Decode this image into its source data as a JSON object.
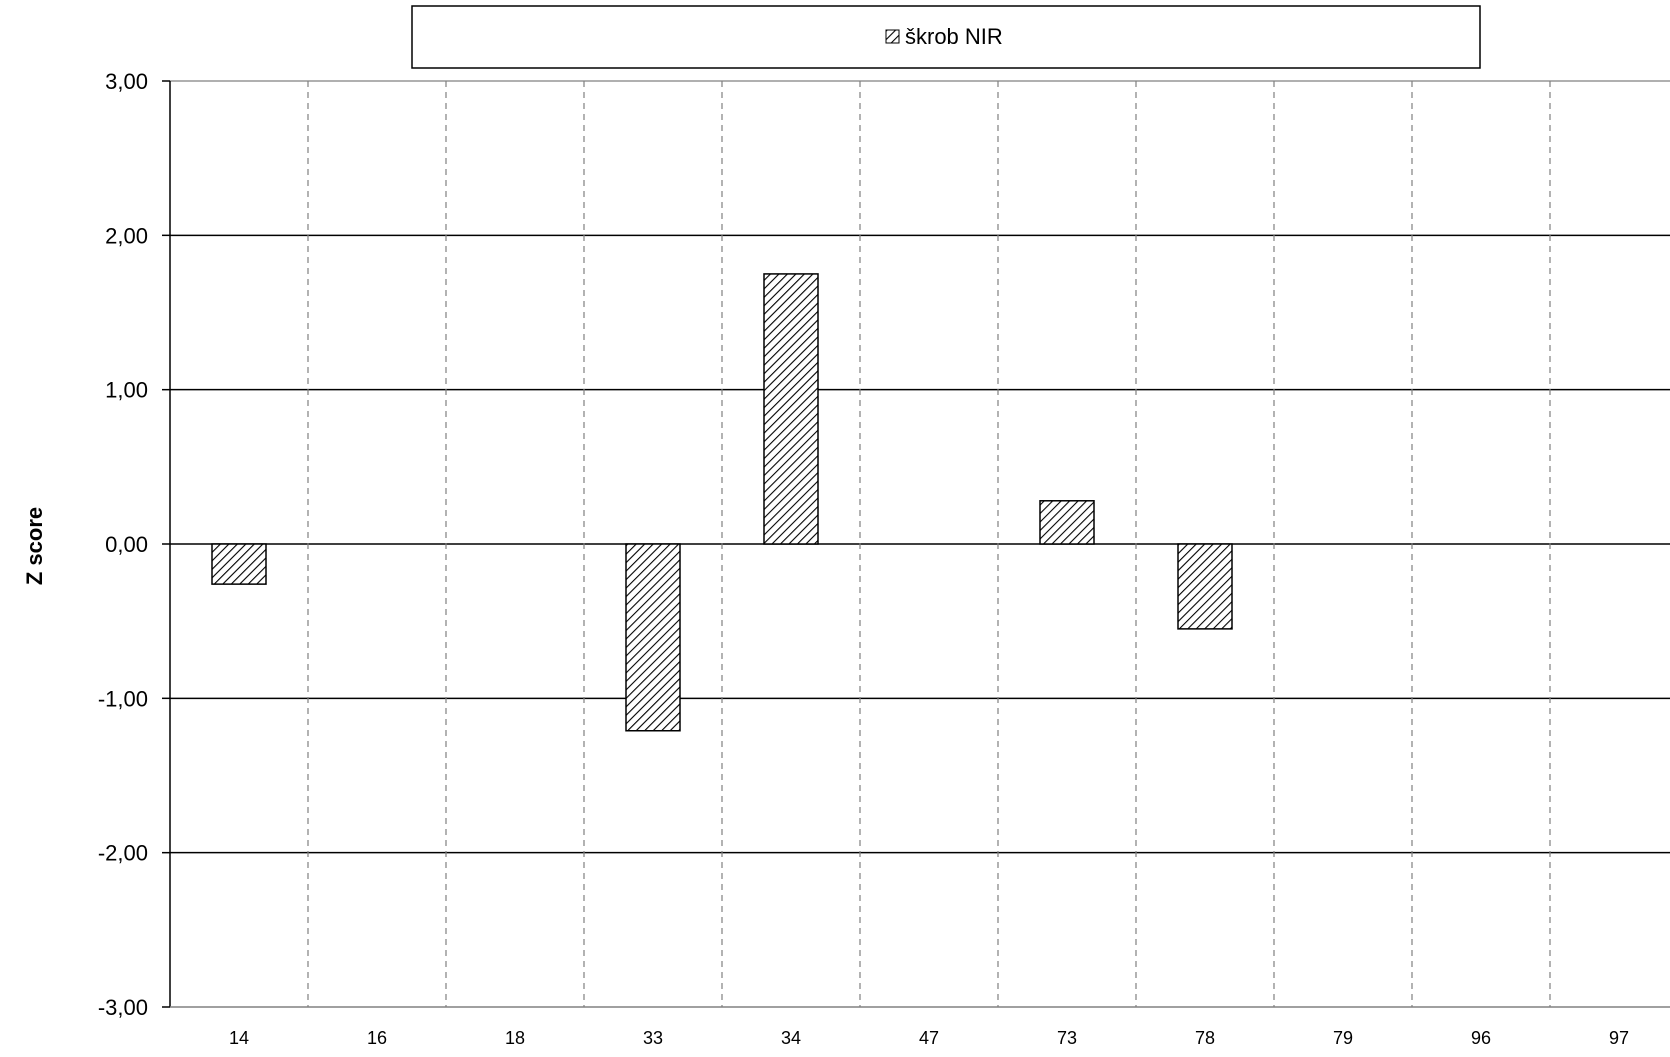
{
  "chart_data": {
    "type": "bar",
    "title": "",
    "xlabel": "",
    "ylabel": "Z score",
    "categories": [
      "14",
      "16",
      "18",
      "33",
      "34",
      "47",
      "73",
      "78",
      "79",
      "96",
      "97"
    ],
    "series": [
      {
        "name": "škrob NIR",
        "values": [
          -0.26,
          null,
          null,
          -1.21,
          1.75,
          null,
          0.28,
          -0.55,
          null,
          null,
          null
        ],
        "fill": "diagonal-hatch"
      }
    ],
    "ylim": [
      -3,
      3
    ],
    "yticks": [
      3,
      2,
      1,
      0,
      -1,
      -2,
      -3
    ],
    "ytick_labels": [
      "3,00",
      "2,00",
      "1,00",
      "0,00",
      "-1,00",
      "-2,00",
      "-3,00"
    ],
    "grid": {
      "horizontal": "solid",
      "vertical": "dashed"
    },
    "legend": {
      "position": "top"
    },
    "colors": {
      "bar_stroke": "#000000",
      "hatch": "#000000",
      "bar_background": "#ffffff",
      "grid_major": "#000000",
      "grid_minor": "#808080"
    }
  }
}
